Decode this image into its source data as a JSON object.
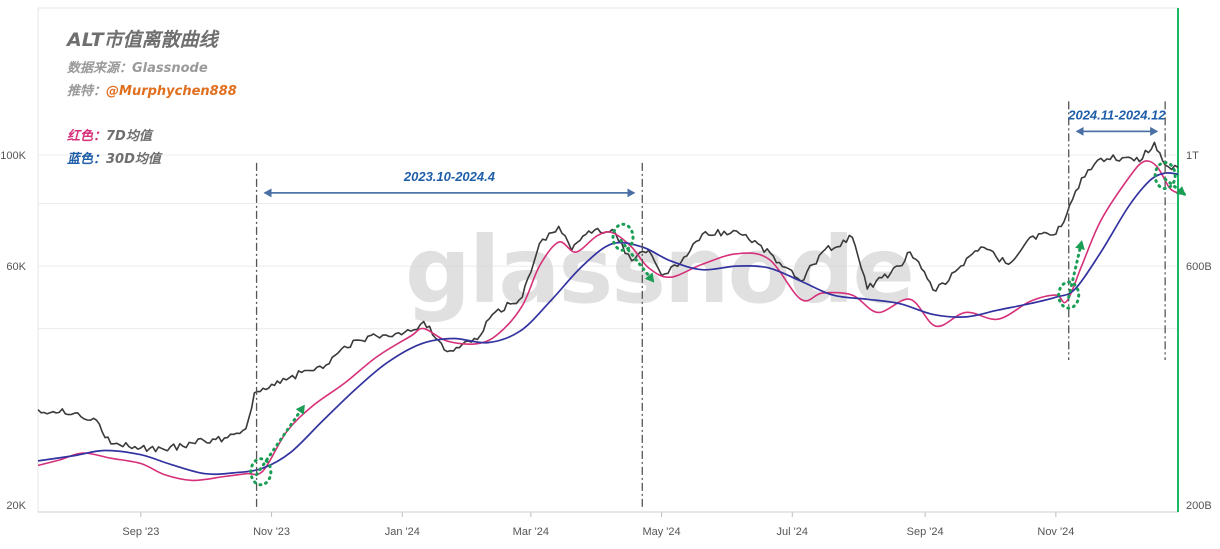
{
  "header": {
    "title": "ALT市值离散曲线",
    "source": "数据来源：Glassnode",
    "author_prefix": "推特：",
    "author_handle": "@Murphychen888"
  },
  "legend": {
    "red_key": "红色：",
    "red_value": "7D均值",
    "blue_key": "蓝色：",
    "blue_value": "30D均值"
  },
  "watermark": "glassnode",
  "colors": {
    "price": "#3a3a3a",
    "ma7": "#d6307a",
    "ma30": "#3232a0",
    "annotation": "#4a6fa5",
    "arrow": "#1a9e55",
    "right_axis": "#1db665",
    "handle": "#e07020",
    "legend_red": "#d6307a",
    "legend_blue": "#1f5ea8",
    "range_label": "#1f5ea8"
  },
  "chart_data": {
    "type": "line",
    "x_range": [
      "2023-07-15",
      "2024-12-28"
    ],
    "x_ticks": [
      {
        "date": "2023-09-01",
        "label": "Sep '23"
      },
      {
        "date": "2023-11-01",
        "label": "Nov '23"
      },
      {
        "date": "2024-01-01",
        "label": "Jan '24"
      },
      {
        "date": "2024-03-01",
        "label": "Mar '24"
      },
      {
        "date": "2024-05-01",
        "label": "May '24"
      },
      {
        "date": "2024-07-01",
        "label": "Jul '24"
      },
      {
        "date": "2024-09-01",
        "label": "Sep '24"
      },
      {
        "date": "2024-11-01",
        "label": "Nov '24"
      }
    ],
    "y_left": {
      "scale": "log",
      "min": 20000,
      "max": 100000,
      "ticks": [
        {
          "value": 100000,
          "label": "100K"
        },
        {
          "value": 60000,
          "label": "60K"
        },
        {
          "value": 20000,
          "label": "20K"
        }
      ]
    },
    "y_right": {
      "scale": "log",
      "min": 200000000000,
      "max": 1000000000000,
      "ticks": [
        {
          "value": 1000000000000,
          "label": "1T"
        },
        {
          "value": 600000000000,
          "label": "600B"
        },
        {
          "value": 200000000000,
          "label": "200B"
        }
      ]
    },
    "grid": true,
    "series": [
      {
        "key": "price",
        "axis": "left",
        "points": [
          [
            "2023-07-15",
            31000
          ],
          [
            "2023-08-01",
            30500
          ],
          [
            "2023-08-10",
            29800
          ],
          [
            "2023-08-18",
            26500
          ],
          [
            "2023-09-01",
            26000
          ],
          [
            "2023-09-12",
            25800
          ],
          [
            "2023-09-25",
            26600
          ],
          [
            "2023-10-10",
            27200
          ],
          [
            "2023-10-20",
            28400
          ],
          [
            "2023-10-24",
            33500
          ],
          [
            "2023-11-05",
            35000
          ],
          [
            "2023-11-15",
            36800
          ],
          [
            "2023-11-25",
            37500
          ],
          [
            "2023-12-05",
            41500
          ],
          [
            "2023-12-20",
            43500
          ],
          [
            "2024-01-05",
            44500
          ],
          [
            "2024-01-11",
            46500
          ],
          [
            "2024-01-22",
            40500
          ],
          [
            "2024-02-05",
            42800
          ],
          [
            "2024-02-12",
            48000
          ],
          [
            "2024-02-26",
            52000
          ],
          [
            "2024-03-05",
            66500
          ],
          [
            "2024-03-14",
            72000
          ],
          [
            "2024-03-20",
            64500
          ],
          [
            "2024-03-28",
            70500
          ],
          [
            "2024-04-08",
            71000
          ],
          [
            "2024-04-17",
            61500
          ],
          [
            "2024-04-25",
            64500
          ],
          [
            "2024-05-01",
            57500
          ],
          [
            "2024-05-10",
            61000
          ],
          [
            "2024-05-20",
            69500
          ],
          [
            "2024-06-05",
            70500
          ],
          [
            "2024-06-15",
            66500
          ],
          [
            "2024-06-25",
            61000
          ],
          [
            "2024-07-05",
            56000
          ],
          [
            "2024-07-15",
            64000
          ],
          [
            "2024-07-29",
            68500
          ],
          [
            "2024-08-05",
            54000
          ],
          [
            "2024-08-20",
            60000
          ],
          [
            "2024-08-25",
            64000
          ],
          [
            "2024-09-06",
            53500
          ],
          [
            "2024-09-15",
            58500
          ],
          [
            "2024-09-27",
            65500
          ],
          [
            "2024-10-10",
            60500
          ],
          [
            "2024-10-20",
            68500
          ],
          [
            "2024-11-01",
            69500
          ],
          [
            "2024-11-06",
            76000
          ],
          [
            "2024-11-13",
            90000
          ],
          [
            "2024-11-22",
            98500
          ],
          [
            "2024-12-05",
            99000
          ],
          [
            "2024-12-10",
            97000
          ],
          [
            "2024-12-17",
            106000
          ],
          [
            "2024-12-22",
            95500
          ],
          [
            "2024-12-28",
            94500
          ]
        ]
      },
      {
        "key": "ma7",
        "axis": "left",
        "points": [
          [
            "2023-07-15",
            24000
          ],
          [
            "2023-07-25",
            24600
          ],
          [
            "2023-08-05",
            25400
          ],
          [
            "2023-08-18",
            24800
          ],
          [
            "2023-09-01",
            24200
          ],
          [
            "2023-09-12",
            23000
          ],
          [
            "2023-09-25",
            22400
          ],
          [
            "2023-10-10",
            22800
          ],
          [
            "2023-10-20",
            23100
          ],
          [
            "2023-10-28",
            23400
          ],
          [
            "2023-11-08",
            28000
          ],
          [
            "2023-11-20",
            31500
          ],
          [
            "2023-12-05",
            35000
          ],
          [
            "2023-12-20",
            39500
          ],
          [
            "2024-01-05",
            43500
          ],
          [
            "2024-01-11",
            45000
          ],
          [
            "2024-01-22",
            42500
          ],
          [
            "2024-02-05",
            42000
          ],
          [
            "2024-02-15",
            44000
          ],
          [
            "2024-02-26",
            50000
          ],
          [
            "2024-03-05",
            60000
          ],
          [
            "2024-03-14",
            67000
          ],
          [
            "2024-03-22",
            64000
          ],
          [
            "2024-04-01",
            69000
          ],
          [
            "2024-04-08",
            70000
          ],
          [
            "2024-04-17",
            65500
          ],
          [
            "2024-04-25",
            59500
          ],
          [
            "2024-05-05",
            57000
          ],
          [
            "2024-05-20",
            60500
          ],
          [
            "2024-06-05",
            63500
          ],
          [
            "2024-06-20",
            62000
          ],
          [
            "2024-07-05",
            51500
          ],
          [
            "2024-07-15",
            53000
          ],
          [
            "2024-07-29",
            52500
          ],
          [
            "2024-08-10",
            48500
          ],
          [
            "2024-08-25",
            51500
          ],
          [
            "2024-09-06",
            45500
          ],
          [
            "2024-09-20",
            48500
          ],
          [
            "2024-10-05",
            47000
          ],
          [
            "2024-10-20",
            51000
          ],
          [
            "2024-11-01",
            52500
          ],
          [
            "2024-11-06",
            51000
          ],
          [
            "2024-11-13",
            60000
          ],
          [
            "2024-11-22",
            74000
          ],
          [
            "2024-12-05",
            90000
          ],
          [
            "2024-12-12",
            97000
          ],
          [
            "2024-12-18",
            95000
          ],
          [
            "2024-12-24",
            86000
          ],
          [
            "2024-12-28",
            84000
          ]
        ]
      },
      {
        "key": "ma30",
        "axis": "left",
        "points": [
          [
            "2023-07-15",
            24500
          ],
          [
            "2023-08-01",
            25100
          ],
          [
            "2023-08-15",
            25700
          ],
          [
            "2023-09-01",
            25200
          ],
          [
            "2023-09-15",
            24100
          ],
          [
            "2023-10-01",
            23100
          ],
          [
            "2023-10-15",
            23200
          ],
          [
            "2023-10-28",
            23700
          ],
          [
            "2023-11-10",
            25500
          ],
          [
            "2023-11-25",
            29500
          ],
          [
            "2023-12-10",
            34000
          ],
          [
            "2023-12-25",
            38500
          ],
          [
            "2024-01-10",
            42000
          ],
          [
            "2024-01-25",
            43000
          ],
          [
            "2024-02-10",
            42200
          ],
          [
            "2024-02-25",
            44500
          ],
          [
            "2024-03-10",
            51000
          ],
          [
            "2024-03-25",
            60000
          ],
          [
            "2024-04-08",
            66500
          ],
          [
            "2024-04-22",
            65500
          ],
          [
            "2024-05-05",
            61500
          ],
          [
            "2024-05-20",
            59000
          ],
          [
            "2024-06-05",
            60000
          ],
          [
            "2024-06-20",
            59500
          ],
          [
            "2024-07-05",
            56000
          ],
          [
            "2024-07-20",
            52500
          ],
          [
            "2024-08-05",
            51500
          ],
          [
            "2024-08-20",
            50500
          ],
          [
            "2024-09-05",
            48000
          ],
          [
            "2024-09-20",
            47500
          ],
          [
            "2024-10-05",
            49000
          ],
          [
            "2024-10-20",
            50500
          ],
          [
            "2024-11-01",
            52000
          ],
          [
            "2024-11-10",
            54000
          ],
          [
            "2024-11-22",
            64000
          ],
          [
            "2024-12-05",
            79000
          ],
          [
            "2024-12-15",
            89000
          ],
          [
            "2024-12-22",
            92000
          ],
          [
            "2024-12-28",
            91500
          ]
        ]
      }
    ],
    "annotations": {
      "ranges": [
        {
          "label": "2023.10-2024.4",
          "start": "2023-10-25",
          "end": "2024-04-22",
          "level": 84000
        },
        {
          "label": "2024.11-2024.12",
          "start": "2024-11-07",
          "end": "2024-12-22",
          "level": 111500
        }
      ],
      "arrows": [
        {
          "from": [
            "2023-10-25",
            23000
          ],
          "to": [
            "2023-11-16",
            31500
          ]
        },
        {
          "from": [
            "2024-04-12",
            67500
          ],
          "to": [
            "2024-04-27",
            56000
          ]
        },
        {
          "from": [
            "2024-11-07",
            52000
          ],
          "to": [
            "2024-11-13",
            67000
          ]
        },
        {
          "from": [
            "2024-12-22",
            89500
          ],
          "to": [
            "2024-12-31",
            83500
          ]
        }
      ],
      "circles": [
        {
          "at": [
            "2023-10-27",
            23300
          ]
        },
        {
          "at": [
            "2024-04-13",
            68500
          ]
        },
        {
          "at": [
            "2024-11-07",
            52500
          ]
        },
        {
          "at": [
            "2024-12-22",
            91000
          ]
        }
      ]
    }
  }
}
